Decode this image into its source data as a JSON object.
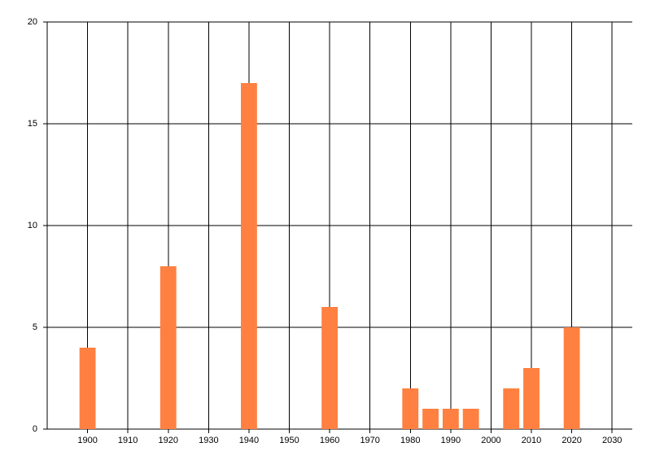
{
  "chart_data": {
    "type": "bar",
    "x": [
      1900,
      1920,
      1940,
      1960,
      1980,
      1985,
      1990,
      1995,
      2005,
      2010,
      2020
    ],
    "values": [
      4,
      8,
      17,
      6,
      2,
      1,
      1,
      1,
      2,
      3,
      5
    ],
    "color": "#ff8040",
    "xlim": [
      1890,
      2035
    ],
    "xticks": [
      1900,
      1910,
      1920,
      1930,
      1940,
      1950,
      1960,
      1970,
      1980,
      1990,
      2000,
      2010,
      2020,
      2030
    ],
    "ylim": [
      0,
      20
    ],
    "yticks": [
      0,
      5,
      10,
      15,
      20
    ],
    "grid": true
  }
}
